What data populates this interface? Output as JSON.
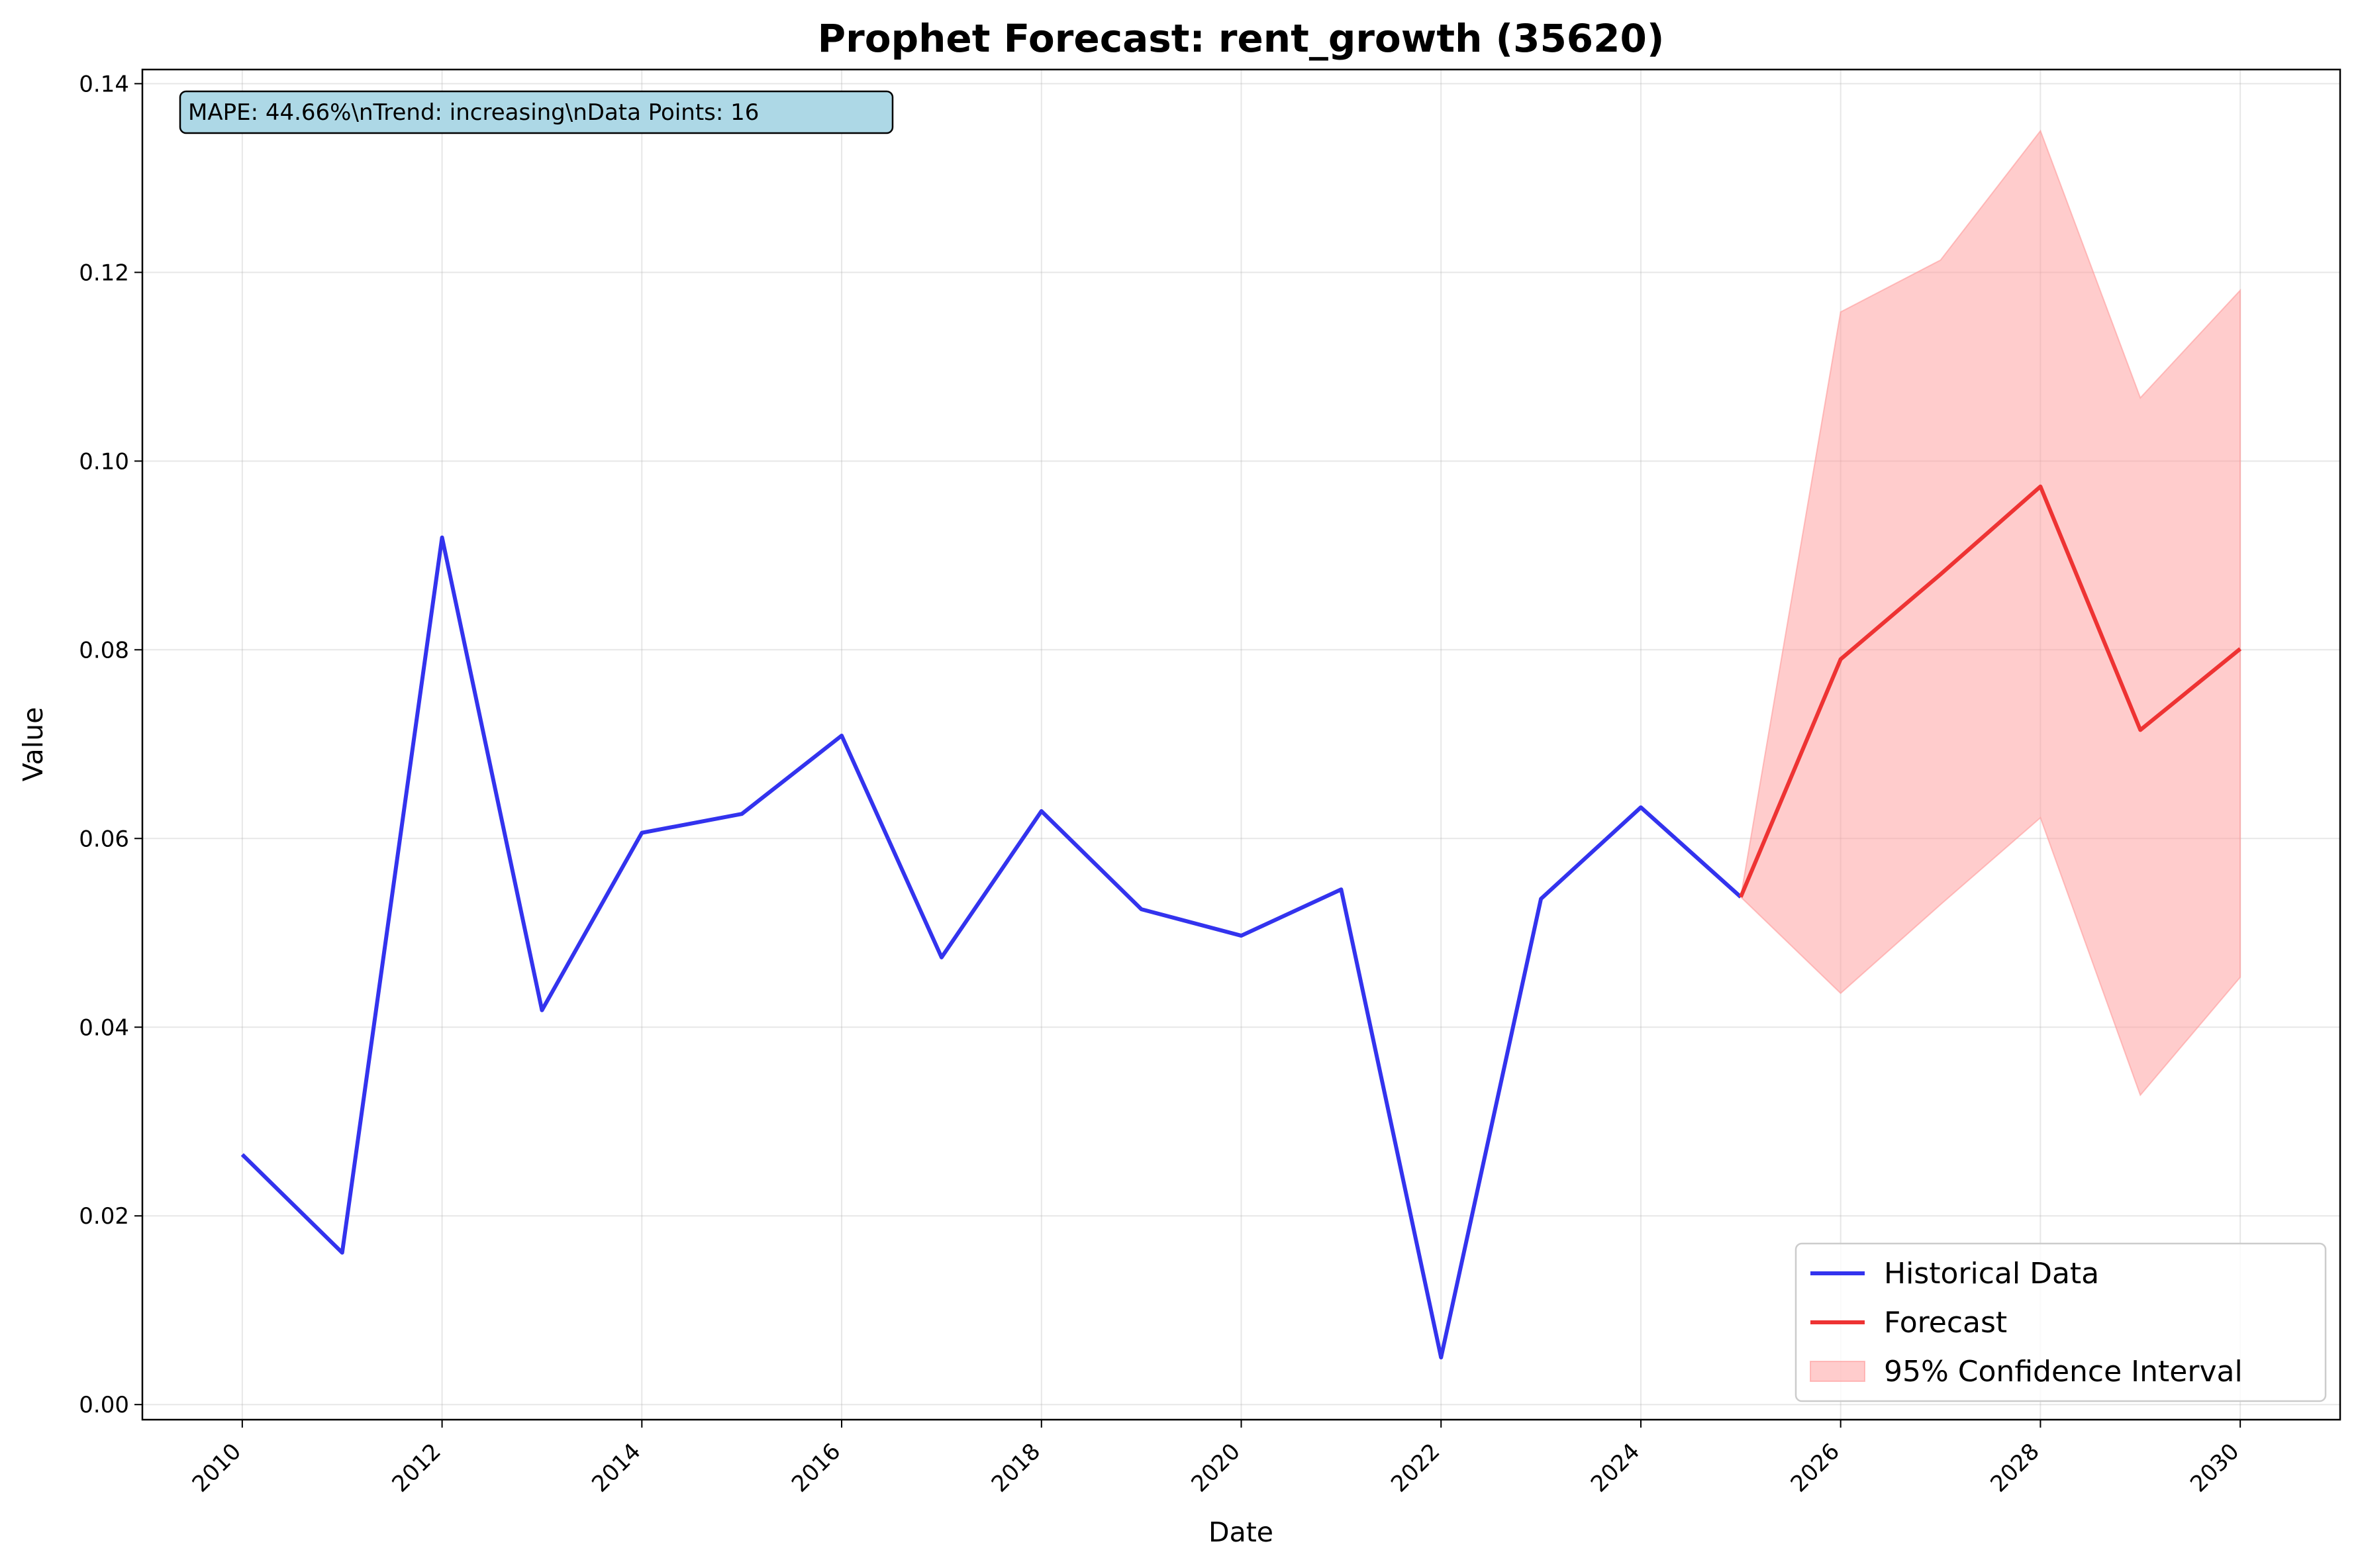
{
  "chart_data": {
    "type": "line",
    "title": "Prophet Forecast: rent_growth (35620)",
    "xlabel": "Date",
    "ylabel": "Value",
    "xlim": [
      2009.0,
      2031.0
    ],
    "ylim": [
      -0.0016,
      0.1415
    ],
    "x_ticks": [
      2010,
      2012,
      2014,
      2016,
      2018,
      2020,
      2022,
      2024,
      2026,
      2028,
      2030
    ],
    "y_ticks": [
      "0.00",
      "0.02",
      "0.04",
      "0.06",
      "0.08",
      "0.10",
      "0.12",
      "0.14"
    ],
    "y_tick_values": [
      0.0,
      0.02,
      0.04,
      0.06,
      0.08,
      0.1,
      0.12,
      0.14
    ],
    "grid": true,
    "legend_position": "lower-right",
    "annotation": "MAPE: 44.66%\\nTrend: increasing\\nData Points: 16",
    "series": [
      {
        "name": "Historical Data",
        "color": "#3333ee",
        "x": [
          2010,
          2011,
          2012,
          2013,
          2014,
          2015,
          2016,
          2017,
          2018,
          2019,
          2020,
          2021,
          2022,
          2023,
          2024,
          2025
        ],
        "values": [
          0.0265,
          0.0161,
          0.0919,
          0.0418,
          0.0606,
          0.0626,
          0.0709,
          0.0474,
          0.0629,
          0.0525,
          0.0497,
          0.0546,
          0.005,
          0.0536,
          0.0633,
          0.0538
        ]
      },
      {
        "name": "Forecast",
        "color": "#ee3333",
        "x": [
          2025,
          2026,
          2027,
          2028,
          2029,
          2030
        ],
        "values": [
          0.0538,
          0.079,
          0.088,
          0.0973,
          0.0715,
          0.0801
        ]
      }
    ],
    "confidence_interval": {
      "name": "95% Confidence Interval",
      "color": "#ff9999",
      "x": [
        2025,
        2026,
        2027,
        2028,
        2029,
        2030
      ],
      "lower": [
        0.0538,
        0.0436,
        0.053,
        0.0622,
        0.0328,
        0.0453
      ],
      "upper": [
        0.0538,
        0.1158,
        0.1213,
        0.135,
        0.1067,
        0.1181
      ]
    }
  }
}
